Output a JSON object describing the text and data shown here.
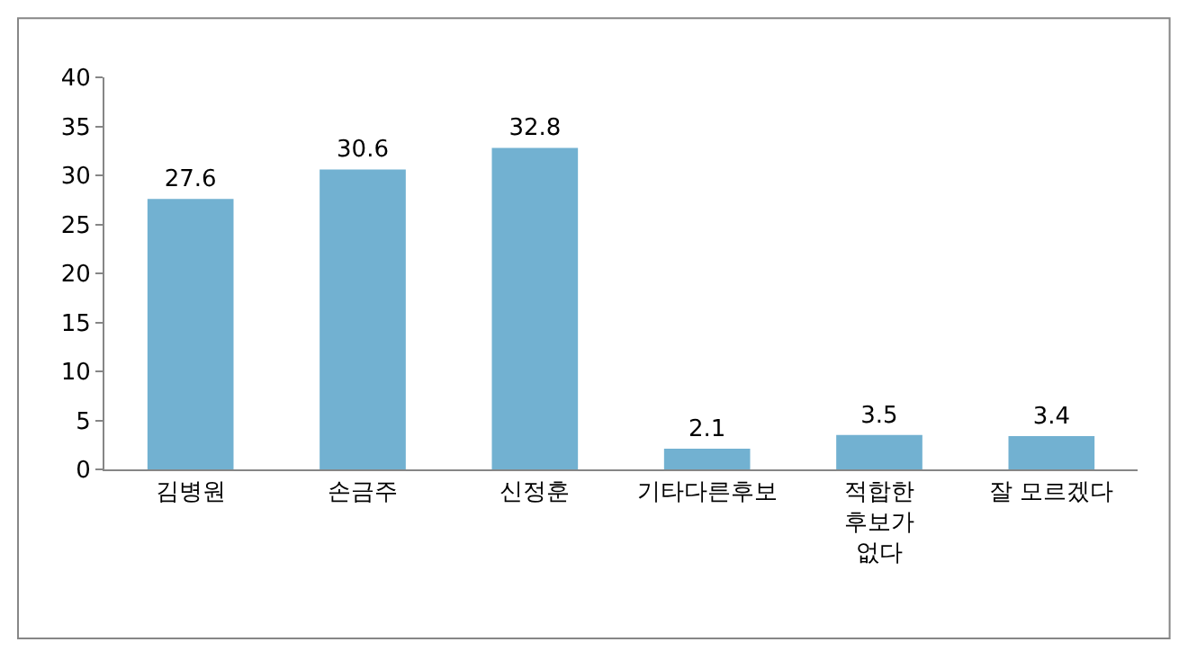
{
  "chart_data": {
    "type": "bar",
    "categories": [
      "김병원",
      "손금주",
      "신정훈",
      "기타다른후보",
      "적합한\n후보가\n없다",
      "잘 모르겠다"
    ],
    "values": [
      27.6,
      30.6,
      32.8,
      2.1,
      3.5,
      3.4
    ],
    "color": "#72b1d1",
    "ylim": [
      0,
      40
    ],
    "yticks": [
      0,
      5,
      10,
      15,
      20,
      25,
      30,
      35,
      40
    ],
    "data_labels": true
  }
}
